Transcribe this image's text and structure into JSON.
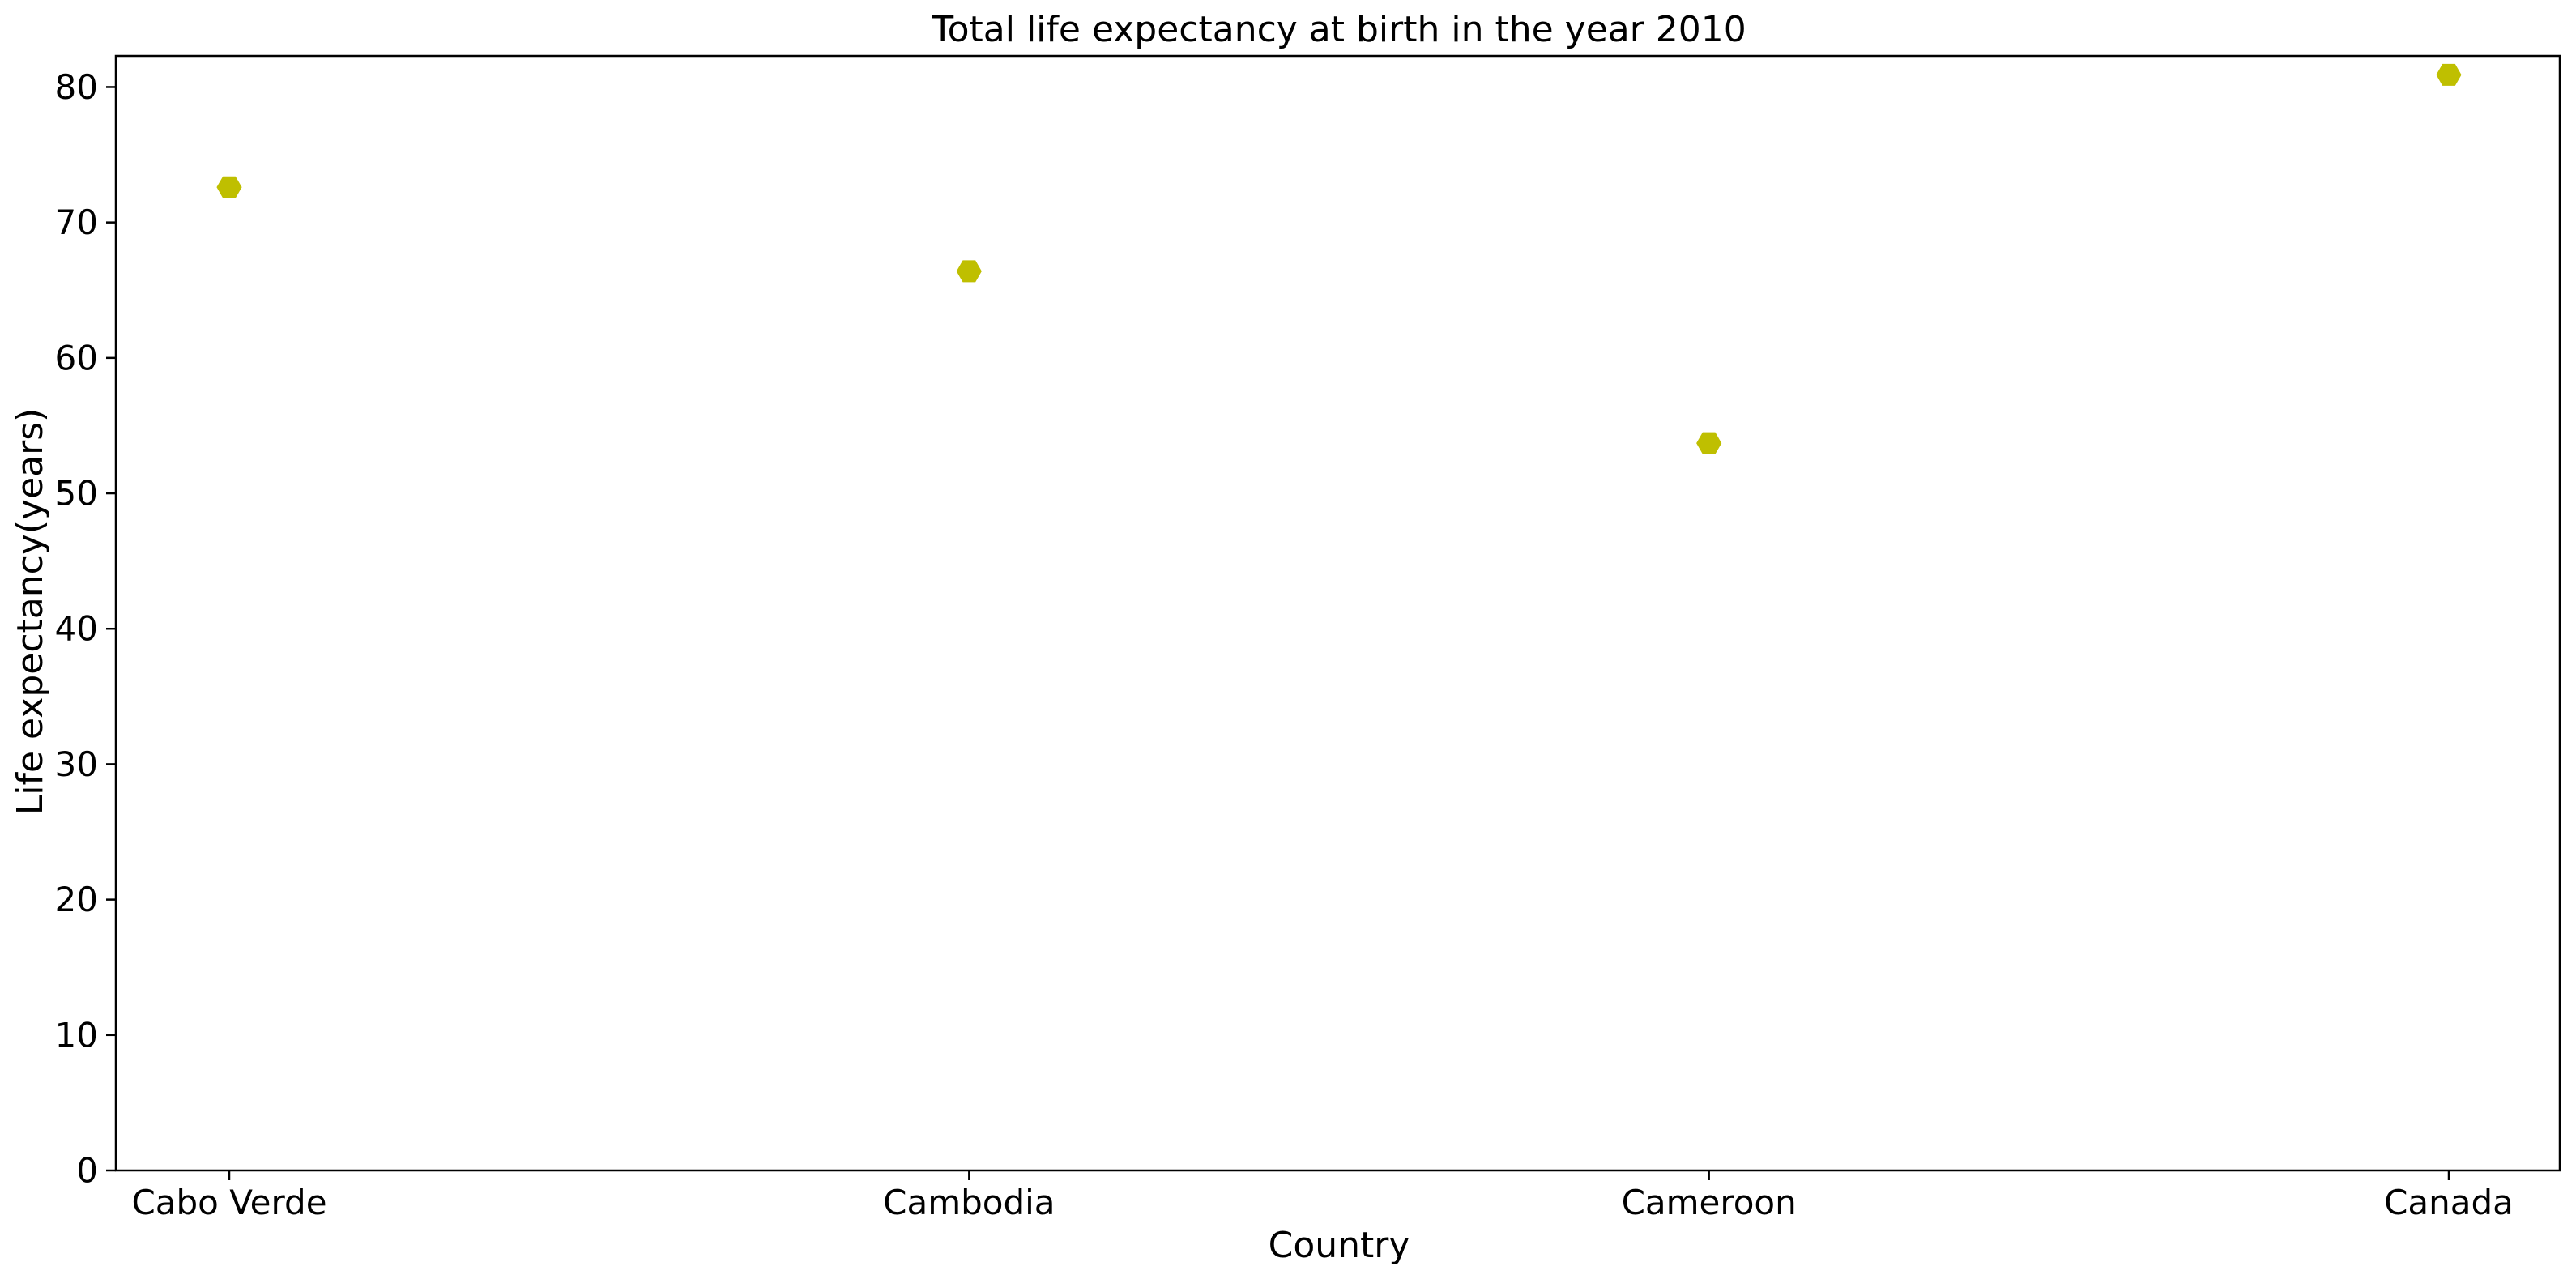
{
  "chart_data": {
    "type": "scatter",
    "title": "Total life expectancy at birth in the year 2010",
    "xlabel": "Country",
    "ylabel": "Life expectancy(years)",
    "categories": [
      "Cabo Verde",
      "Cambodia",
      "Cameroon",
      "Canada"
    ],
    "series": [
      {
        "values": [
          72.6,
          66.4,
          53.7,
          80.9
        ]
      }
    ],
    "ylim": [
      0,
      82.3
    ],
    "yticks": [
      0,
      10,
      20,
      30,
      40,
      50,
      60,
      70,
      80
    ],
    "marker": "hexagon",
    "marker_color": "#bfbf00",
    "grid": false,
    "legend": "none"
  }
}
